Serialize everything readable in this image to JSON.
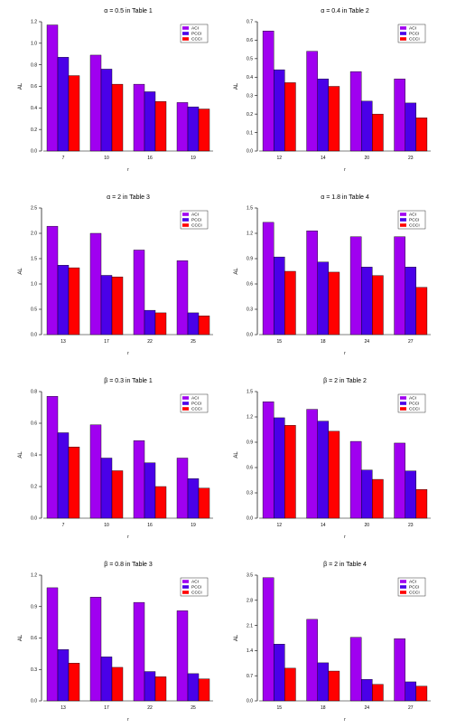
{
  "legend_labels": [
    "ACI",
    "PCCI",
    "CCCI"
  ],
  "colors": {
    "ACI": "#a000f0",
    "PCCI": "#4a00e8",
    "CCCI": "#ff0000"
  },
  "chart_data": [
    {
      "type": "bar",
      "title": "α = 0.5 in Table 1",
      "xlabel": "r",
      "ylabel": "AL",
      "categories": [
        "7",
        "10",
        "16",
        "19"
      ],
      "ylim": [
        0,
        1.2
      ],
      "yticks": [
        "0.0",
        "0.2",
        "0.4",
        "0.6",
        "0.8",
        "1.0",
        "1.2"
      ],
      "series": [
        {
          "name": "ACI",
          "values": [
            1.17,
            0.89,
            0.62,
            0.45
          ]
        },
        {
          "name": "PCCI",
          "values": [
            0.87,
            0.76,
            0.55,
            0.41
          ]
        },
        {
          "name": "CCCI",
          "values": [
            0.7,
            0.62,
            0.46,
            0.39
          ]
        }
      ],
      "legend": "top-right"
    },
    {
      "type": "bar",
      "title": "α = 0.4 in Table 2",
      "xlabel": "r",
      "ylabel": "AL",
      "categories": [
        "12",
        "14",
        "20",
        "23"
      ],
      "ylim": [
        0,
        0.7
      ],
      "yticks": [
        "0.0",
        "0.1",
        "0.2",
        "0.3",
        "0.4",
        "0.5",
        "0.6",
        "0.7"
      ],
      "series": [
        {
          "name": "ACI",
          "values": [
            0.65,
            0.54,
            0.43,
            0.39
          ]
        },
        {
          "name": "PCCI",
          "values": [
            0.44,
            0.39,
            0.27,
            0.26
          ]
        },
        {
          "name": "CCCI",
          "values": [
            0.37,
            0.35,
            0.2,
            0.18
          ]
        }
      ],
      "legend": "top-right"
    },
    {
      "type": "bar",
      "title": "α = 2 in Table 3",
      "xlabel": "r",
      "ylabel": "AL",
      "categories": [
        "13",
        "17",
        "22",
        "25"
      ],
      "ylim": [
        0,
        2.5
      ],
      "yticks": [
        "0.0",
        "0.5",
        "1.0",
        "1.5",
        "2.0",
        "2.5"
      ],
      "series": [
        {
          "name": "ACI",
          "values": [
            2.14,
            2.0,
            1.67,
            1.46
          ]
        },
        {
          "name": "PCCI",
          "values": [
            1.37,
            1.17,
            0.48,
            0.43
          ]
        },
        {
          "name": "CCCI",
          "values": [
            1.32,
            1.14,
            0.43,
            0.37
          ]
        }
      ],
      "legend": "top-right"
    },
    {
      "type": "bar",
      "title": "α = 1.8 in Table 4",
      "xlabel": "r",
      "ylabel": "AL",
      "categories": [
        "15",
        "18",
        "24",
        "27"
      ],
      "ylim": [
        0,
        1.5
      ],
      "yticks": [
        "0.0",
        "0.3",
        "0.6",
        "0.9",
        "1.2",
        "1.5"
      ],
      "series": [
        {
          "name": "ACI",
          "values": [
            1.33,
            1.23,
            1.16,
            1.16
          ]
        },
        {
          "name": "PCCI",
          "values": [
            0.92,
            0.86,
            0.8,
            0.8
          ]
        },
        {
          "name": "CCCI",
          "values": [
            0.75,
            0.74,
            0.7,
            0.56
          ]
        }
      ],
      "legend": "top-right"
    },
    {
      "type": "bar",
      "title": "β = 0.3 in Table 1",
      "xlabel": "r",
      "ylabel": "AL",
      "categories": [
        "7",
        "10",
        "16",
        "19"
      ],
      "ylim": [
        0,
        0.8
      ],
      "yticks": [
        "0.0",
        "0.2",
        "0.4",
        "0.6",
        "0.8"
      ],
      "series": [
        {
          "name": "ACI",
          "values": [
            0.77,
            0.59,
            0.49,
            0.38
          ]
        },
        {
          "name": "PCCI",
          "values": [
            0.54,
            0.38,
            0.35,
            0.25
          ]
        },
        {
          "name": "CCCI",
          "values": [
            0.45,
            0.3,
            0.2,
            0.19
          ]
        }
      ],
      "legend": "top-right"
    },
    {
      "type": "bar",
      "title": "β = 2 in Table 2",
      "xlabel": "r",
      "ylabel": "AL",
      "categories": [
        "12",
        "14",
        "20",
        "23"
      ],
      "ylim": [
        0,
        1.5
      ],
      "yticks": [
        "0.0",
        "0.3",
        "0.6",
        "0.9",
        "1.2",
        "1.5"
      ],
      "series": [
        {
          "name": "ACI",
          "values": [
            1.38,
            1.29,
            0.91,
            0.89
          ]
        },
        {
          "name": "PCCI",
          "values": [
            1.19,
            1.15,
            0.57,
            0.56
          ]
        },
        {
          "name": "CCCI",
          "values": [
            1.1,
            1.03,
            0.46,
            0.34
          ]
        }
      ],
      "legend": "top-right"
    },
    {
      "type": "bar",
      "title": "β = 0.8 in Table 3",
      "xlabel": "r",
      "ylabel": "AL",
      "categories": [
        "13",
        "17",
        "22",
        "25"
      ],
      "ylim": [
        0,
        1.2
      ],
      "yticks": [
        "0.0",
        "0.3",
        "0.6",
        "0.9",
        "1.2"
      ],
      "series": [
        {
          "name": "ACI",
          "values": [
            1.08,
            0.99,
            0.94,
            0.86
          ]
        },
        {
          "name": "PCCI",
          "values": [
            0.49,
            0.42,
            0.28,
            0.26
          ]
        },
        {
          "name": "CCCI",
          "values": [
            0.36,
            0.32,
            0.23,
            0.21
          ]
        }
      ],
      "legend": "top-right"
    },
    {
      "type": "bar",
      "title": "β = 2 in Table 4",
      "xlabel": "r",
      "ylabel": "AL",
      "categories": [
        "15",
        "18",
        "24",
        "27"
      ],
      "ylim": [
        0,
        3.5
      ],
      "yticks": [
        "0.0",
        "0.7",
        "1.4",
        "2.1",
        "2.8",
        "3.5"
      ],
      "series": [
        {
          "name": "ACI",
          "values": [
            3.43,
            2.27,
            1.77,
            1.73
          ]
        },
        {
          "name": "PCCI",
          "values": [
            1.58,
            1.06,
            0.6,
            0.53
          ]
        },
        {
          "name": "CCCI",
          "values": [
            0.91,
            0.83,
            0.46,
            0.41
          ]
        }
      ],
      "legend": "top-right"
    }
  ]
}
